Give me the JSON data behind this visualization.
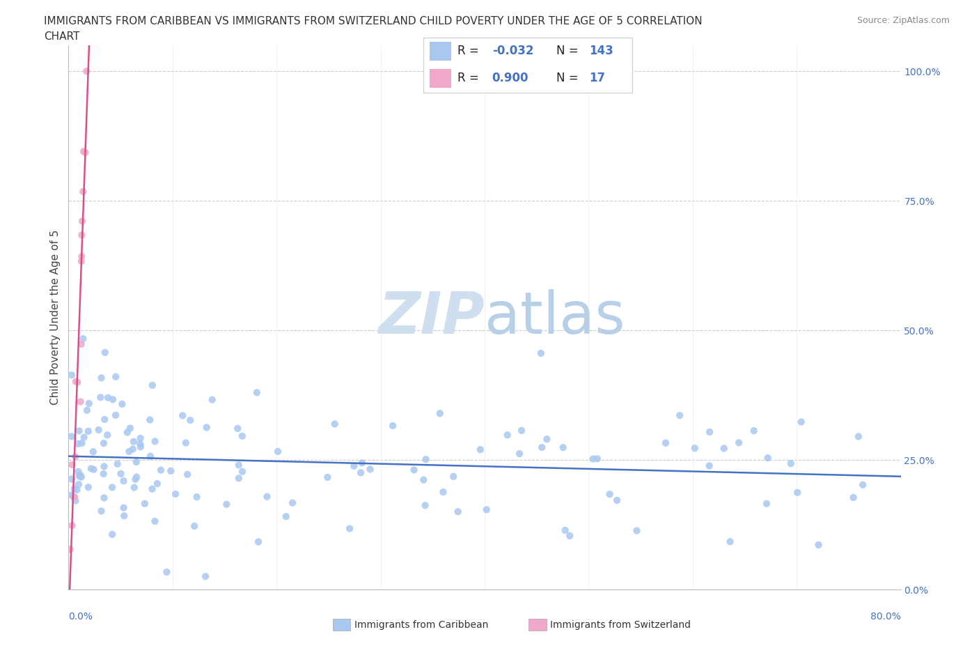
{
  "title_line1": "IMMIGRANTS FROM CARIBBEAN VS IMMIGRANTS FROM SWITZERLAND CHILD POVERTY UNDER THE AGE OF 5 CORRELATION",
  "title_line2": "CHART",
  "source": "Source: ZipAtlas.com",
  "ylabel": "Child Poverty Under the Age of 5",
  "xlim": [
    0.0,
    0.8
  ],
  "ylim": [
    0.0,
    1.05
  ],
  "color_caribbean": "#a8c8f0",
  "color_switzerland": "#f0a8c8",
  "trendline_color_caribbean": "#4472c4",
  "trendline_color_switzerland": "#d94f8a",
  "watermark_color": "#dce8f5",
  "legend_r_caribbean": "-0.032",
  "legend_n_caribbean": "143",
  "legend_r_switzerland": "0.900",
  "legend_n_switzerland": "17",
  "label_caribbean": "Immigrants from Caribbean",
  "label_switzerland": "Immigrants from Switzerland"
}
